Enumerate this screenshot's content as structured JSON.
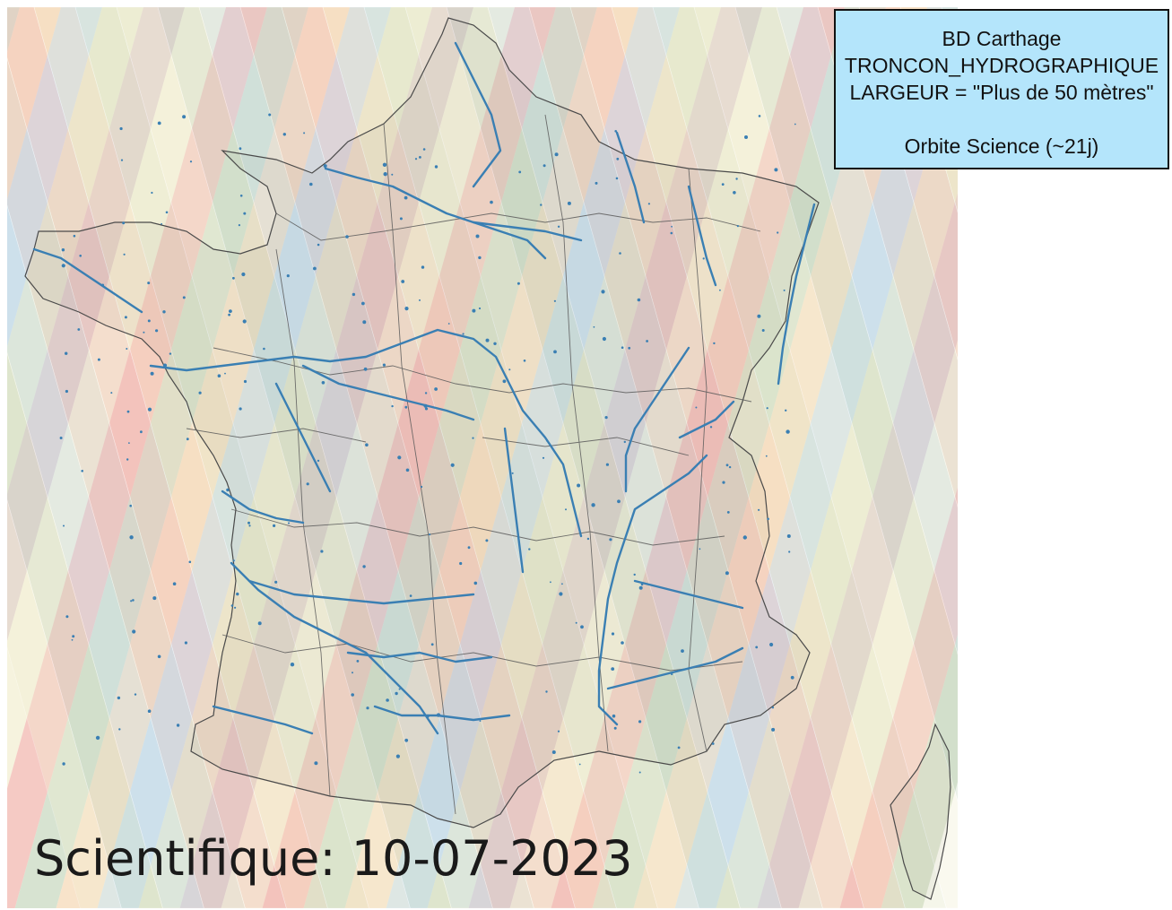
{
  "legend": {
    "line1": "BD Carthage",
    "line2": "TRONCON_HYDROGRAPHIQUE",
    "line3": "LARGEUR = \"Plus de 50 mètres\"",
    "line4": "Orbite Science (~21j)"
  },
  "date_label": "Scientifique: 10-07-2023",
  "colors": {
    "swath_palette": [
      "#f2b8b0",
      "#c9d9c2",
      "#f5d9b8",
      "#c4dbe8",
      "#e3e6c5",
      "#d8c3c0",
      "#f3efd3"
    ],
    "river": "#3a7fb3",
    "boundary": "#555555",
    "legend_bg": "#b4e5fb"
  },
  "icons": [
    "map-of-france",
    "satellite-swath-pattern"
  ]
}
